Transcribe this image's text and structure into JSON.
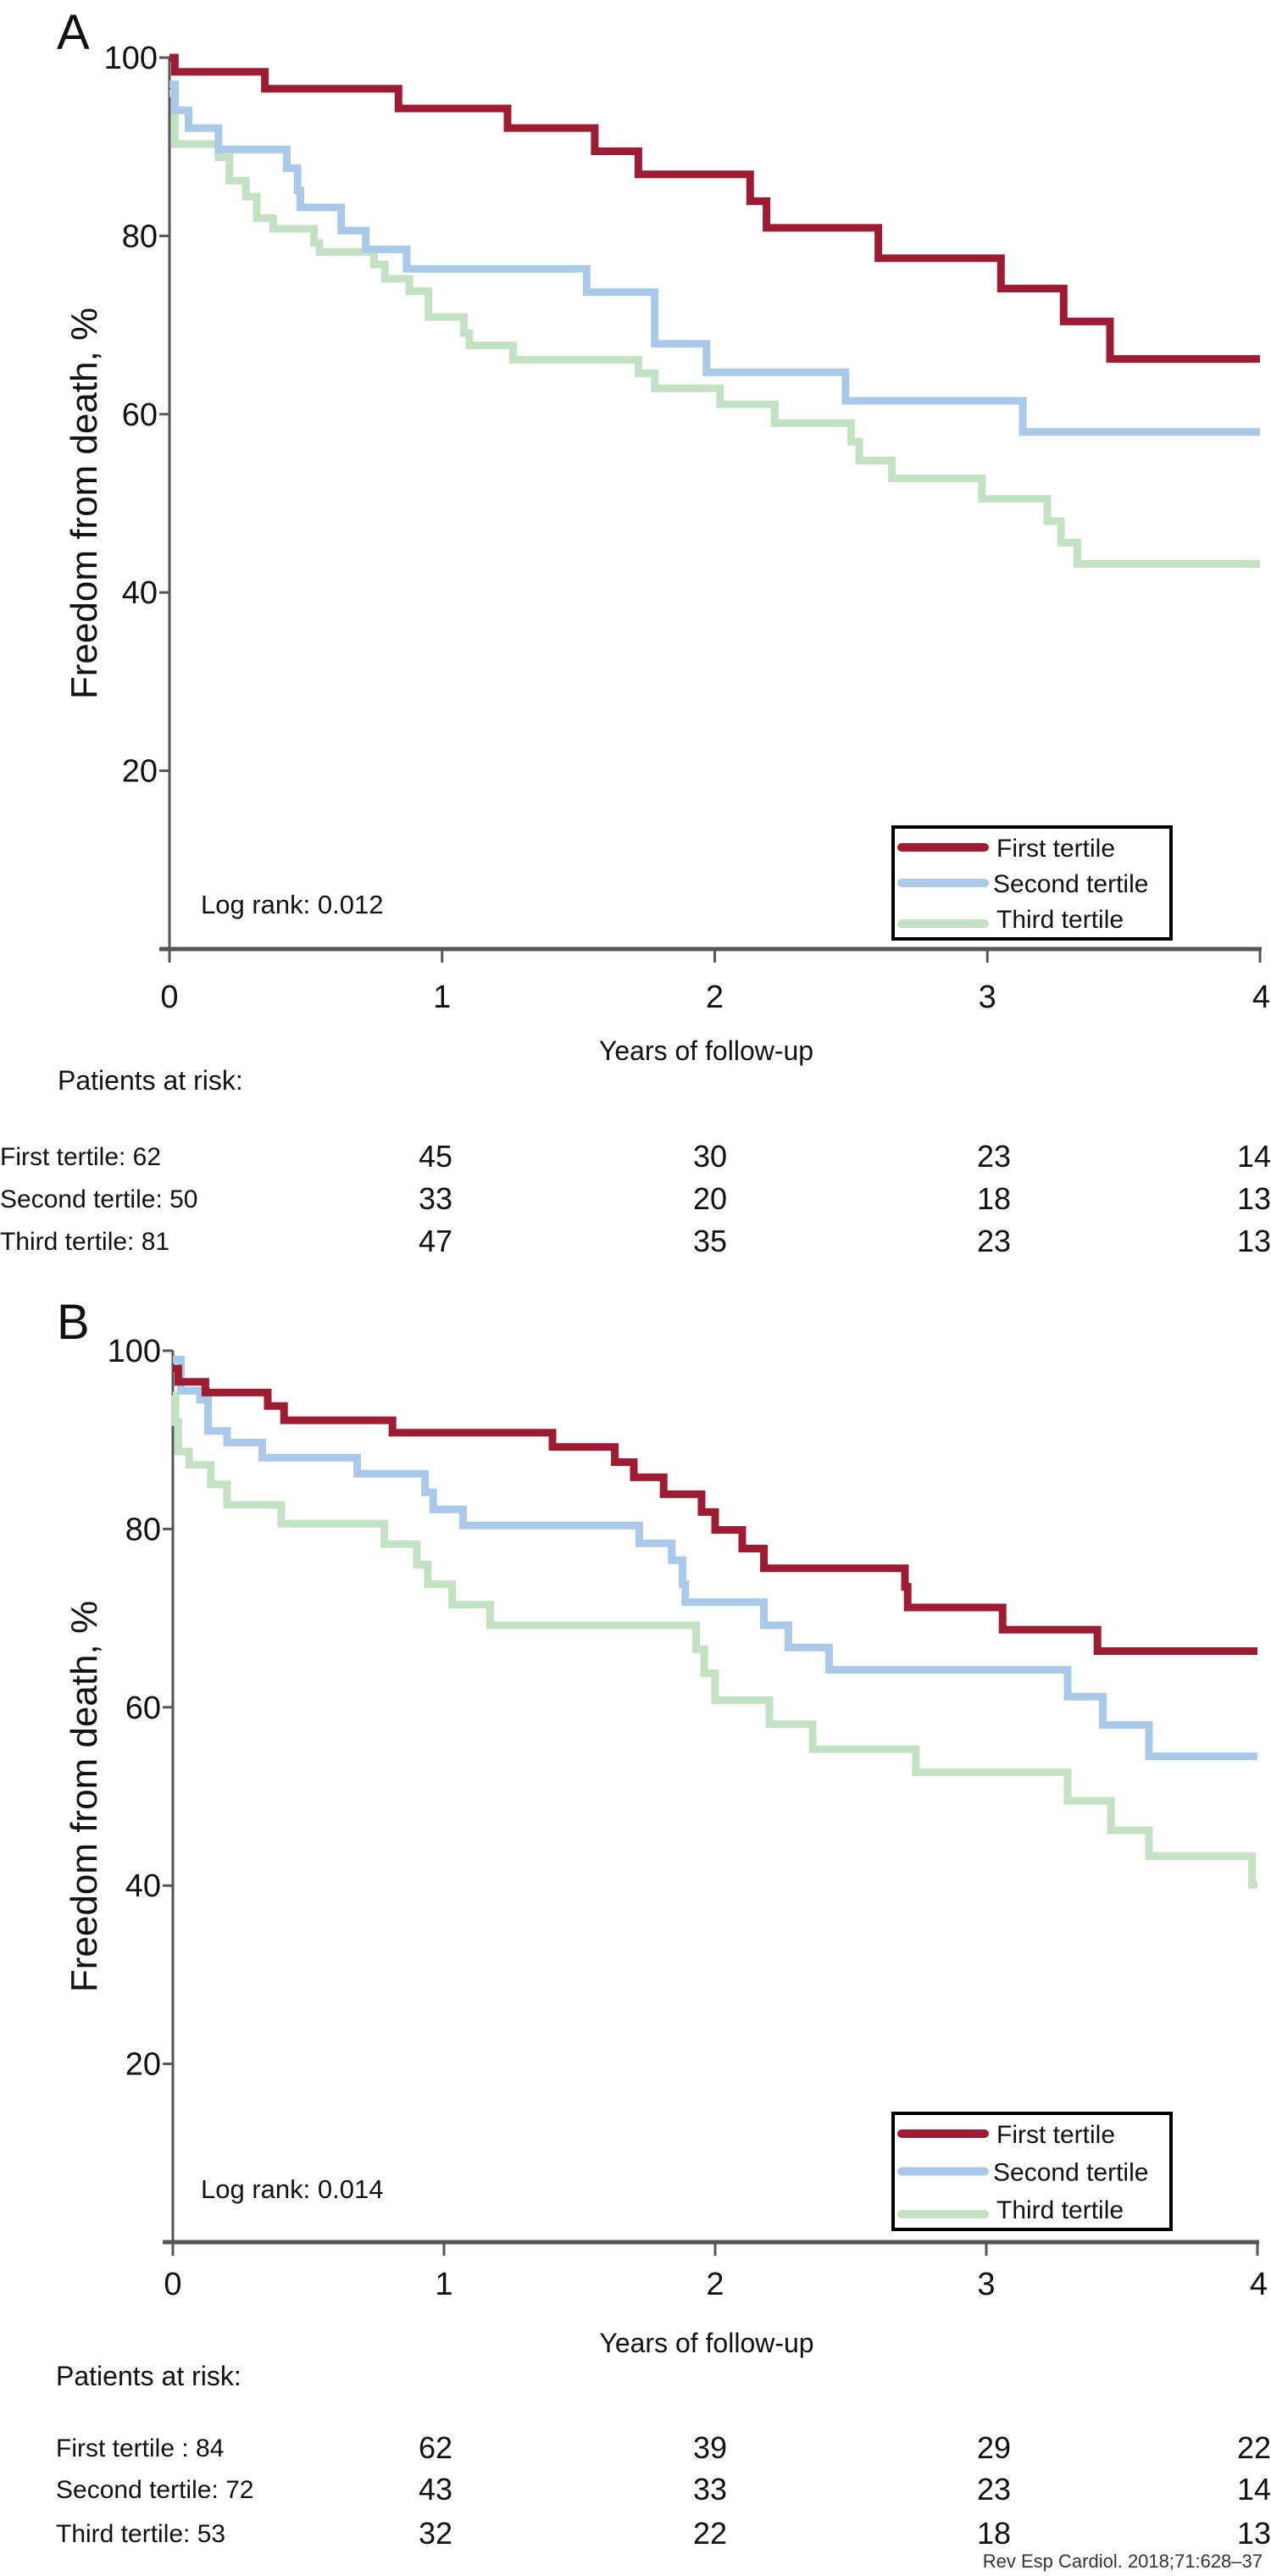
{
  "colors": {
    "first_tertile": "#9e1b32",
    "second_tertile": "#a9c9ea",
    "third_tertile": "#c2e2c2",
    "axis": "#555555"
  },
  "footer": "Rev Esp Cardiol. 2018;71:628–37",
  "chart_data": [
    {
      "panel": "A",
      "type": "line",
      "step": true,
      "ylabel": "Freedom from death, %",
      "xlabel": "Years of follow-up",
      "xlim": [
        0,
        4
      ],
      "ylim": [
        0,
        100
      ],
      "xticks": [
        "0",
        "1",
        "2",
        "3",
        "4"
      ],
      "yticks": [
        "20",
        "40",
        "60",
        "80",
        "100"
      ],
      "legend_position": "bottom-right",
      "annotation": "Log rank: 0.012",
      "series": [
        {
          "name": "First tertile",
          "color_key": "first_tertile",
          "steps": [
            [
              0,
              100
            ],
            [
              0.02,
              98.4
            ],
            [
              0.35,
              96.5
            ],
            [
              0.84,
              94.3
            ],
            [
              1.24,
              92.1
            ],
            [
              1.56,
              89.5
            ],
            [
              1.72,
              86.9
            ],
            [
              2.13,
              83.9
            ],
            [
              2.19,
              80.9
            ],
            [
              2.6,
              77.5
            ],
            [
              3.05,
              74.1
            ],
            [
              3.28,
              70.4
            ],
            [
              3.45,
              66.2
            ]
          ]
        },
        {
          "name": "Second tertile",
          "color_key": "second_tertile",
          "steps": [
            [
              0,
              97
            ],
            [
              0.02,
              94.1
            ],
            [
              0.07,
              92.1
            ],
            [
              0.18,
              89.7
            ],
            [
              0.43,
              87.6
            ],
            [
              0.47,
              85.1
            ],
            [
              0.48,
              83.2
            ],
            [
              0.63,
              80.6
            ],
            [
              0.72,
              78.5
            ],
            [
              0.87,
              76.3
            ],
            [
              1.53,
              73.7
            ],
            [
              1.78,
              67.9
            ],
            [
              1.97,
              64.7
            ],
            [
              2.48,
              61.5
            ],
            [
              3.13,
              58.0
            ]
          ]
        },
        {
          "name": "Third tertile",
          "color_key": "third_tertile",
          "steps": [
            [
              0,
              96
            ],
            [
              0.02,
              90.3
            ],
            [
              0.18,
              88.8
            ],
            [
              0.22,
              86.2
            ],
            [
              0.28,
              84.4
            ],
            [
              0.32,
              82.0
            ],
            [
              0.38,
              80.8
            ],
            [
              0.53,
              79.2
            ],
            [
              0.55,
              78.2
            ],
            [
              0.75,
              76.8
            ],
            [
              0.79,
              75.2
            ],
            [
              0.88,
              73.8
            ],
            [
              0.95,
              70.9
            ],
            [
              1.08,
              69.1
            ],
            [
              1.1,
              67.7
            ],
            [
              1.26,
              66.1
            ],
            [
              1.72,
              64.6
            ],
            [
              1.78,
              62.9
            ],
            [
              2.02,
              61.1
            ],
            [
              2.22,
              59.0
            ],
            [
              2.5,
              56.9
            ],
            [
              2.53,
              54.8
            ],
            [
              2.65,
              52.8
            ],
            [
              2.98,
              50.5
            ],
            [
              3.22,
              48.0
            ],
            [
              3.27,
              45.6
            ],
            [
              3.33,
              43.2
            ]
          ]
        }
      ],
      "risk_table": {
        "title": "Patients at risk:",
        "rows": [
          {
            "label": "First tertile: 62",
            "values": [
              "45",
              "30",
              "23",
              "14"
            ]
          },
          {
            "label": "Second tertile: 50",
            "values": [
              "33",
              "20",
              "18",
              "13"
            ]
          },
          {
            "label": "Third tertile: 81",
            "values": [
              "47",
              "35",
              "23",
              "13"
            ]
          }
        ]
      }
    },
    {
      "panel": "B",
      "type": "line",
      "step": true,
      "ylabel": "Freedom from  death, %",
      "xlabel": "Years of follow-up",
      "xlim": [
        0,
        4
      ],
      "ylim": [
        0,
        100
      ],
      "xticks": [
        "0",
        "1",
        "2",
        "3",
        "4"
      ],
      "yticks": [
        "20",
        "40",
        "60",
        "80",
        "100"
      ],
      "legend_position": "bottom-right",
      "annotation": "Log rank: 0.014",
      "series": [
        {
          "name": "First tertile",
          "color_key": "first_tertile",
          "steps": [
            [
              0,
              98
            ],
            [
              0.02,
              96.5
            ],
            [
              0.12,
              95.3
            ],
            [
              0.35,
              93.8
            ],
            [
              0.41,
              92.2
            ],
            [
              0.81,
              90.8
            ],
            [
              1.4,
              89.2
            ],
            [
              1.63,
              87.5
            ],
            [
              1.7,
              85.8
            ],
            [
              1.81,
              83.9
            ],
            [
              1.95,
              81.9
            ],
            [
              2.0,
              79.9
            ],
            [
              2.1,
              77.8
            ],
            [
              2.18,
              75.6
            ],
            [
              2.7,
              73.5
            ],
            [
              2.71,
              71.2
            ],
            [
              3.06,
              68.7
            ],
            [
              3.41,
              66.3
            ]
          ]
        },
        {
          "name": "Second tertile",
          "color_key": "second_tertile",
          "steps": [
            [
              0,
              99
            ],
            [
              0.03,
              95.5
            ],
            [
              0.1,
              94.5
            ],
            [
              0.13,
              91.0
            ],
            [
              0.2,
              89.7
            ],
            [
              0.33,
              88.0
            ],
            [
              0.68,
              86.2
            ],
            [
              0.93,
              84.1
            ],
            [
              0.96,
              82.2
            ],
            [
              1.07,
              80.4
            ],
            [
              1.72,
              78.4
            ],
            [
              1.84,
              76.5
            ],
            [
              1.88,
              73.8
            ],
            [
              1.89,
              71.8
            ],
            [
              2.18,
              69.2
            ],
            [
              2.27,
              66.7
            ],
            [
              2.42,
              64.2
            ],
            [
              3.3,
              61.2
            ],
            [
              3.43,
              58.0
            ],
            [
              3.6,
              54.5
            ]
          ]
        },
        {
          "name": "Third tertile",
          "color_key": "third_tertile",
          "steps": [
            [
              0,
              95
            ],
            [
              0.01,
              92.0
            ],
            [
              0.02,
              88.7
            ],
            [
              0.06,
              87.2
            ],
            [
              0.14,
              85.0
            ],
            [
              0.2,
              82.7
            ],
            [
              0.4,
              80.6
            ],
            [
              0.78,
              78.3
            ],
            [
              0.9,
              76.0
            ],
            [
              0.94,
              73.8
            ],
            [
              1.03,
              71.5
            ],
            [
              1.17,
              69.2
            ],
            [
              1.93,
              66.5
            ],
            [
              1.96,
              63.8
            ],
            [
              2.0,
              60.8
            ],
            [
              2.2,
              58.1
            ],
            [
              2.36,
              55.3
            ],
            [
              2.74,
              52.7
            ],
            [
              3.3,
              49.5
            ],
            [
              3.46,
              46.2
            ],
            [
              3.6,
              43.3
            ],
            [
              3.98,
              40.1
            ]
          ]
        }
      ],
      "risk_table": {
        "title": "Patients at risk:",
        "rows": [
          {
            "label": "First tertile : 84",
            "values": [
              "62",
              "39",
              "29",
              "22"
            ]
          },
          {
            "label": "Second tertile: 72",
            "values": [
              "43",
              "33",
              "23",
              "14"
            ]
          },
          {
            "label": "Third tertile: 53",
            "values": [
              "32",
              "22",
              "18",
              "13"
            ]
          }
        ]
      }
    }
  ]
}
